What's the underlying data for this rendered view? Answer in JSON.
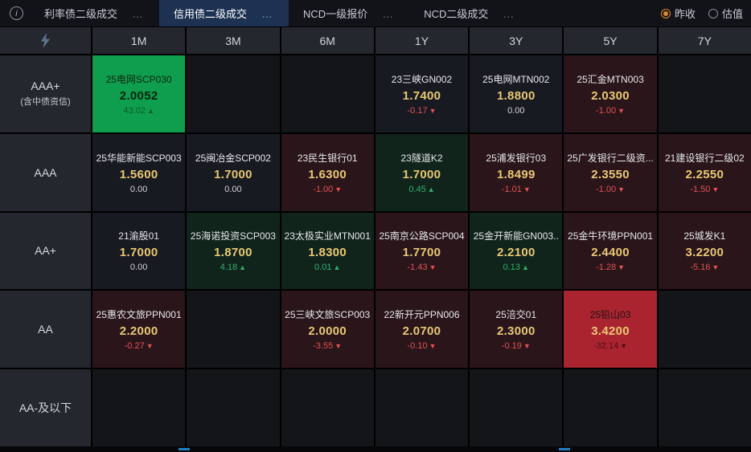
{
  "topbar": {
    "info_icon": "i",
    "tabs": [
      {
        "label": "利率债二级成交",
        "more": "…",
        "active": false
      },
      {
        "label": "信用债二级成交",
        "more": "…",
        "active": true
      },
      {
        "label": "NCD一级报价",
        "more": "…",
        "active": false
      },
      {
        "label": "NCD二级成交",
        "more": "…",
        "active": false
      }
    ],
    "radios": [
      {
        "label": "昨收",
        "selected": true
      },
      {
        "label": "估值",
        "selected": false
      }
    ]
  },
  "table": {
    "columns": [
      "1M",
      "3M",
      "6M",
      "1Y",
      "3Y",
      "5Y",
      "7Y"
    ],
    "rows": [
      {
        "label": "AAA+",
        "sublabel": "(含中债资信)",
        "cells": [
          {
            "name": "25电网SCP030",
            "value": "2.0052",
            "change": "43.02",
            "dir": "up",
            "tone": "strong-up"
          },
          null,
          null,
          {
            "name": "23三峡GN002",
            "value": "1.7400",
            "change": "-0.17",
            "dir": "down",
            "tone": "none"
          },
          {
            "name": "25电网MTN002",
            "value": "1.8800",
            "change": "0.00",
            "dir": "flat",
            "tone": "none"
          },
          {
            "name": "25汇金MTN003",
            "value": "2.0300",
            "change": "-1.00",
            "dir": "down",
            "tone": "down"
          },
          null
        ]
      },
      {
        "label": "AAA",
        "sublabel": "",
        "cells": [
          {
            "name": "25华能新能SCP003",
            "value": "1.5600",
            "change": "0.00",
            "dir": "flat",
            "tone": "none"
          },
          {
            "name": "25闽冶金SCP002",
            "value": "1.7000",
            "change": "0.00",
            "dir": "flat",
            "tone": "none"
          },
          {
            "name": "23民生银行01",
            "value": "1.6300",
            "change": "-1.00",
            "dir": "down",
            "tone": "down"
          },
          {
            "name": "23隧道K2",
            "value": "1.7000",
            "change": "0.45",
            "dir": "up",
            "tone": "up"
          },
          {
            "name": "25浦发银行03",
            "value": "1.8499",
            "change": "-1.01",
            "dir": "down",
            "tone": "down"
          },
          {
            "name": "25广发银行二级资...",
            "value": "2.3550",
            "change": "-1.00",
            "dir": "down",
            "tone": "down"
          },
          {
            "name": "21建设银行二级02",
            "value": "2.2550",
            "change": "-1.50",
            "dir": "down",
            "tone": "down"
          }
        ]
      },
      {
        "label": "AA+",
        "sublabel": "",
        "cells": [
          {
            "name": "21渝股01",
            "value": "1.7000",
            "change": "0.00",
            "dir": "flat",
            "tone": "none"
          },
          {
            "name": "25海诺投资SCP003",
            "value": "1.8700",
            "change": "4.18",
            "dir": "up",
            "tone": "up"
          },
          {
            "name": "23太极实业MTN001",
            "value": "1.8300",
            "change": "0.01",
            "dir": "up",
            "tone": "up"
          },
          {
            "name": "25南京公路SCP004",
            "value": "1.7700",
            "change": "-1.43",
            "dir": "down",
            "tone": "down"
          },
          {
            "name": "25金开新能GN003..",
            "value": "2.2100",
            "change": "0.13",
            "dir": "up",
            "tone": "up"
          },
          {
            "name": "25金牛环境PPN001",
            "value": "2.4400",
            "change": "-1.28",
            "dir": "down",
            "tone": "down"
          },
          {
            "name": "25城发K1",
            "value": "3.2200",
            "change": "-5.16",
            "dir": "down",
            "tone": "down"
          }
        ]
      },
      {
        "label": "AA",
        "sublabel": "",
        "cells": [
          {
            "name": "25惠农文旅PPN001",
            "value": "2.2000",
            "change": "-0.27",
            "dir": "down",
            "tone": "down"
          },
          null,
          {
            "name": "25三峡文旅SCP003",
            "value": "2.0000",
            "change": "-3.55",
            "dir": "down",
            "tone": "down"
          },
          {
            "name": "22新开元PPN006",
            "value": "2.0700",
            "change": "-0.10",
            "dir": "down",
            "tone": "down"
          },
          {
            "name": "25涪交01",
            "value": "2.3000",
            "change": "-0.19",
            "dir": "down",
            "tone": "down"
          },
          {
            "name": "25铅山03",
            "value": "3.4200",
            "change": "-32.14",
            "dir": "down",
            "tone": "strong-down"
          },
          null
        ]
      },
      {
        "label": "AA-及以下",
        "sublabel": "",
        "cells": [
          null,
          null,
          null,
          null,
          null,
          null,
          null
        ]
      }
    ]
  },
  "colors": {
    "accent_tab": "#1d3153",
    "yield_gold": "#e8c874",
    "up_green": "#31b06c",
    "down_red": "#e25252",
    "strong_up_bg": "#0f9e4d",
    "strong_down_bg": "#aa2430"
  },
  "icons": {
    "info": "info-icon",
    "logo": "app-logo-icon",
    "up_arrow": "▲",
    "down_arrow": "▼"
  }
}
